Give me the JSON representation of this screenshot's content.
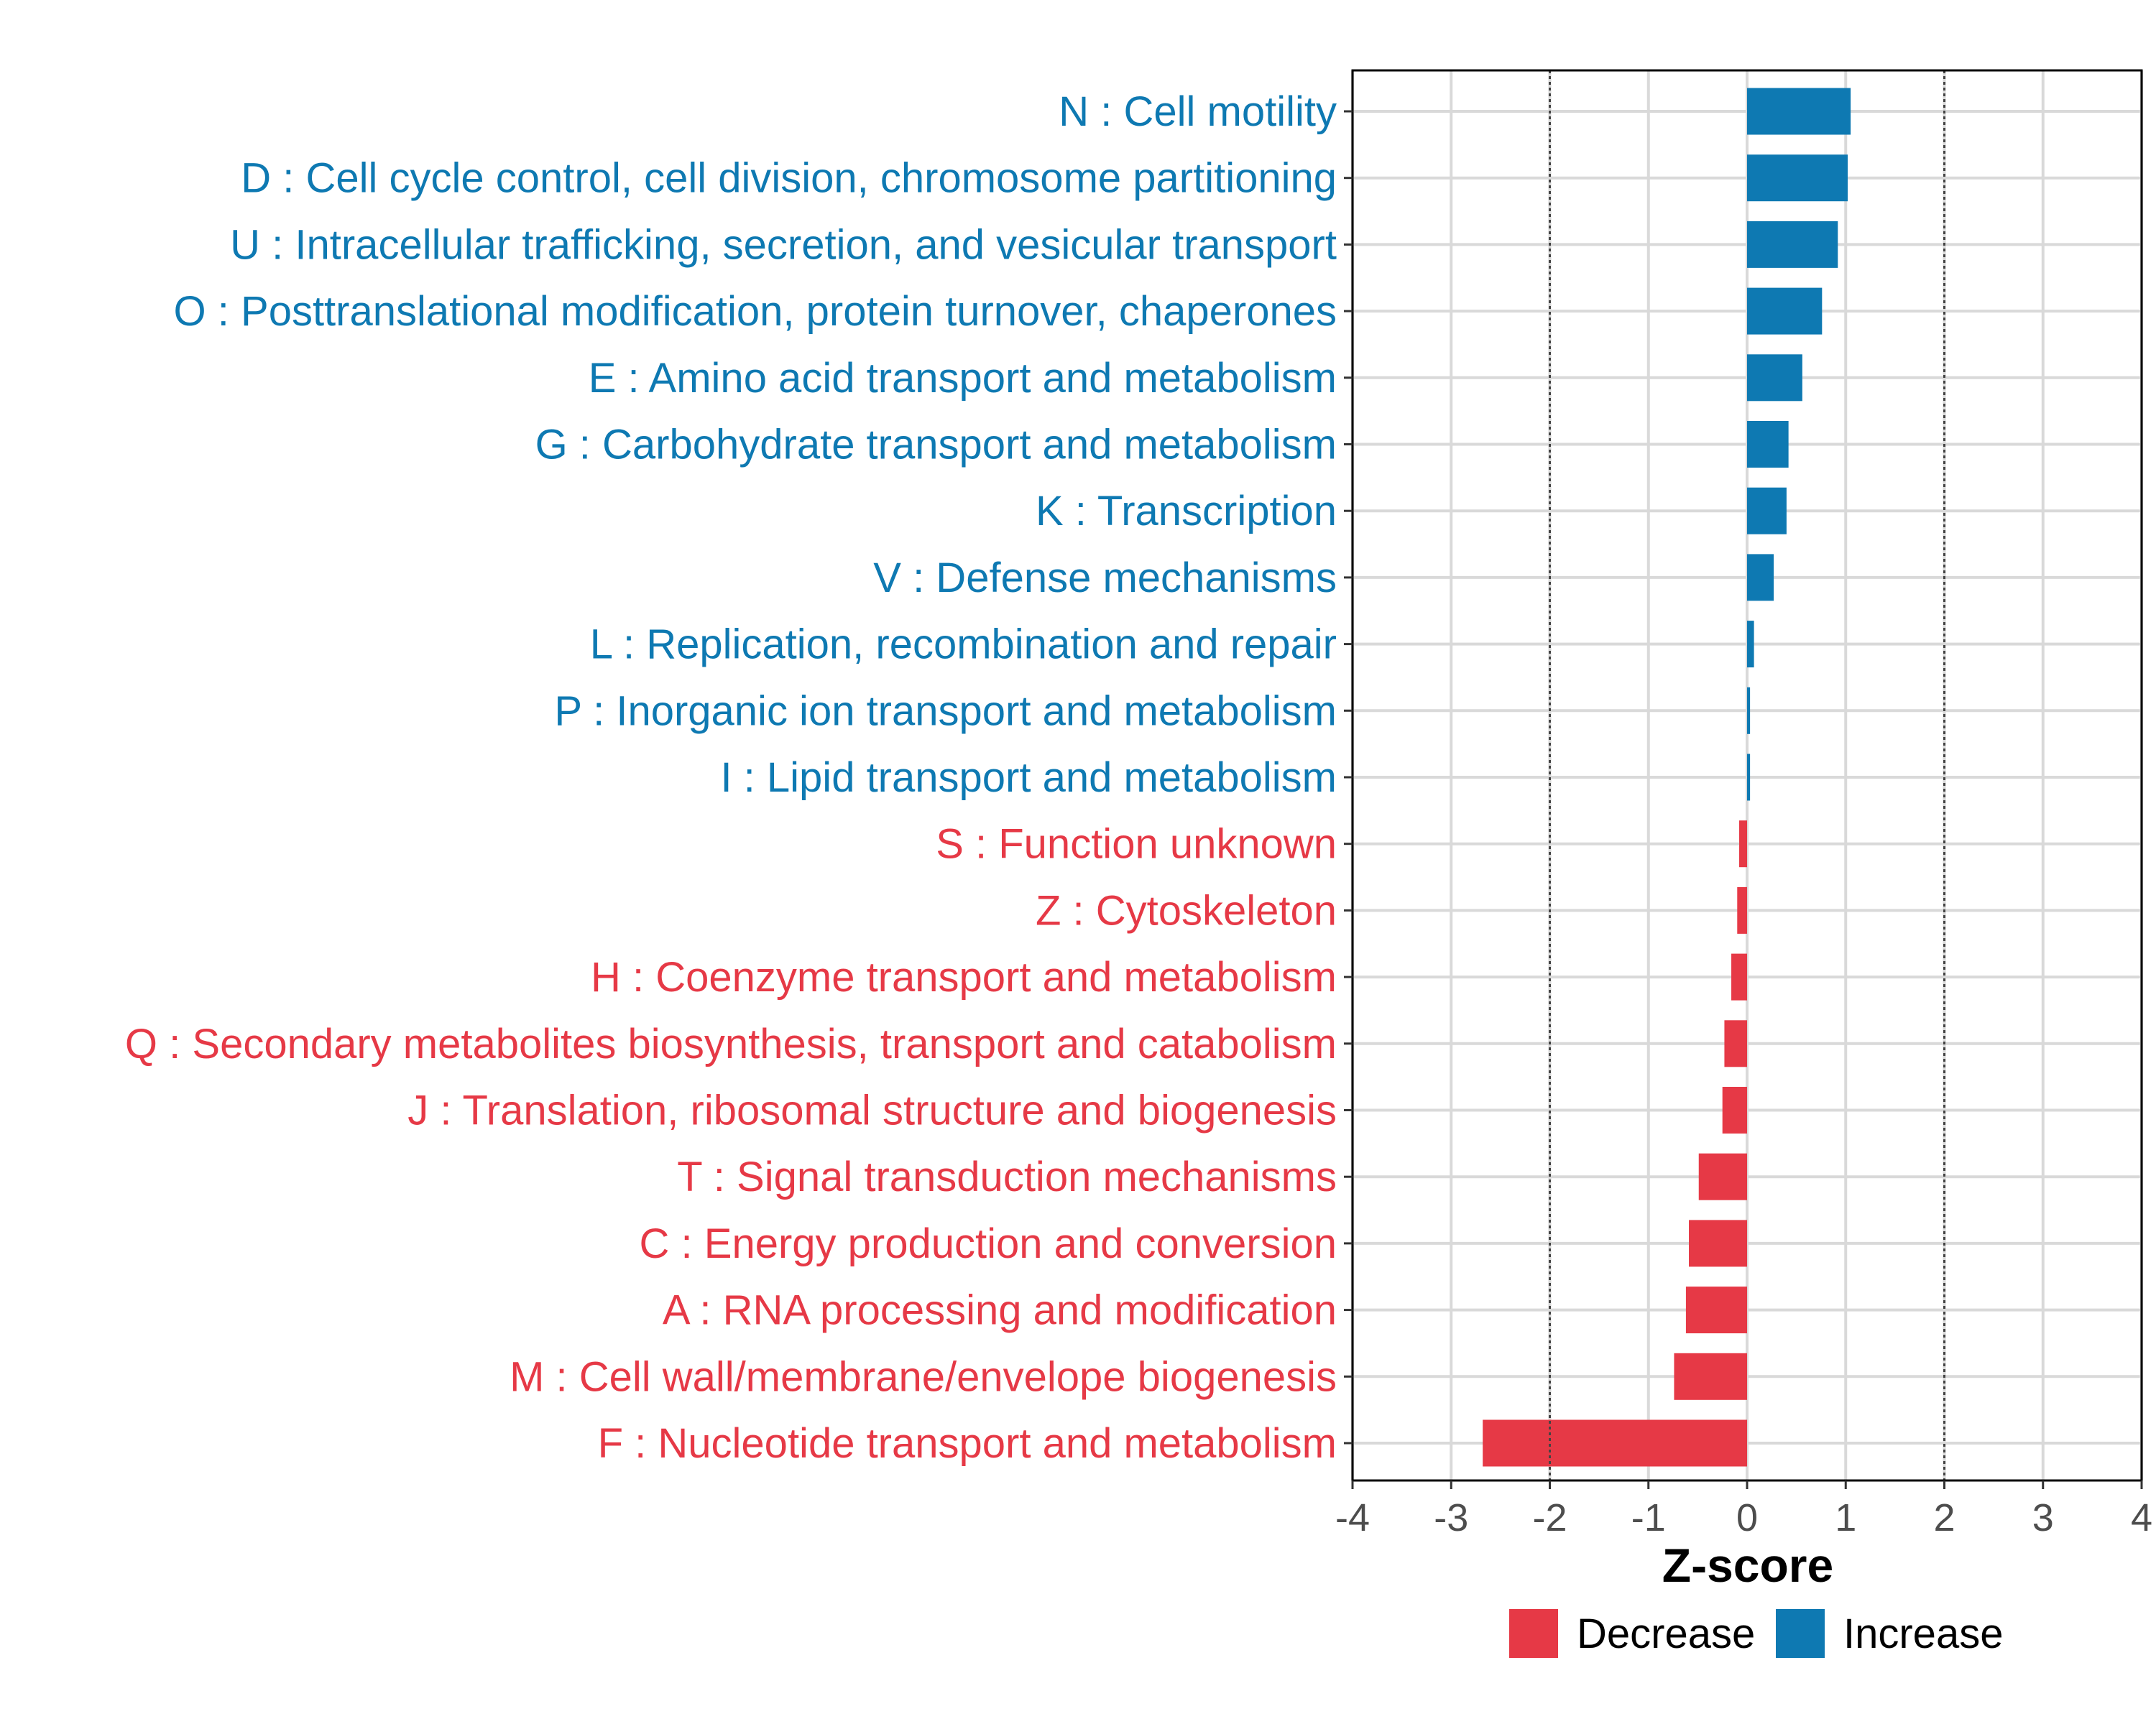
{
  "chart_data": {
    "type": "bar",
    "orientation": "horizontal",
    "xlabel": "Z-score",
    "xlim": [
      -4,
      4
    ],
    "x_ticks": [
      "-4",
      "-3",
      "-2",
      "-1",
      "0",
      "1",
      "2",
      "3",
      "4"
    ],
    "reference_lines": [
      -2,
      2
    ],
    "grid": true,
    "legend_position": "bottom-right",
    "colors": {
      "Decrease": "#e63946",
      "Increase": "#0e79b2"
    },
    "legend": [
      "Decrease",
      "Increase"
    ],
    "categories": [
      "N : Cell motility",
      "D : Cell cycle control, cell division, chromosome partitioning",
      "U : Intracellular trafficking, secretion, and vesicular transport",
      "O : Posttranslational modification, protein turnover, chaperones",
      "E : Amino acid transport and metabolism",
      "G : Carbohydrate transport and metabolism",
      "K : Transcription",
      "V : Defense mechanisms",
      "L : Replication, recombination and repair",
      "P : Inorganic ion transport and metabolism",
      "I : Lipid transport and metabolism",
      "S : Function unknown",
      "Z : Cytoskeleton",
      "H : Coenzyme transport and metabolism",
      "Q : Secondary metabolites biosynthesis, transport and catabolism",
      "J : Translation, ribosomal structure and biogenesis",
      "T : Signal transduction mechanisms",
      "C : Energy production and conversion",
      "A : RNA processing and modification",
      "M : Cell wall/membrane/envelope biogenesis",
      "F : Nucleotide transport and metabolism"
    ],
    "values": [
      1.05,
      1.02,
      0.92,
      0.76,
      0.56,
      0.42,
      0.4,
      0.27,
      0.07,
      0.03,
      0.03,
      -0.08,
      -0.1,
      -0.16,
      -0.23,
      -0.25,
      -0.49,
      -0.59,
      -0.62,
      -0.74,
      -2.68
    ],
    "groups": [
      "Increase",
      "Increase",
      "Increase",
      "Increase",
      "Increase",
      "Increase",
      "Increase",
      "Increase",
      "Increase",
      "Increase",
      "Increase",
      "Decrease",
      "Decrease",
      "Decrease",
      "Decrease",
      "Decrease",
      "Decrease",
      "Decrease",
      "Decrease",
      "Decrease",
      "Decrease"
    ]
  }
}
